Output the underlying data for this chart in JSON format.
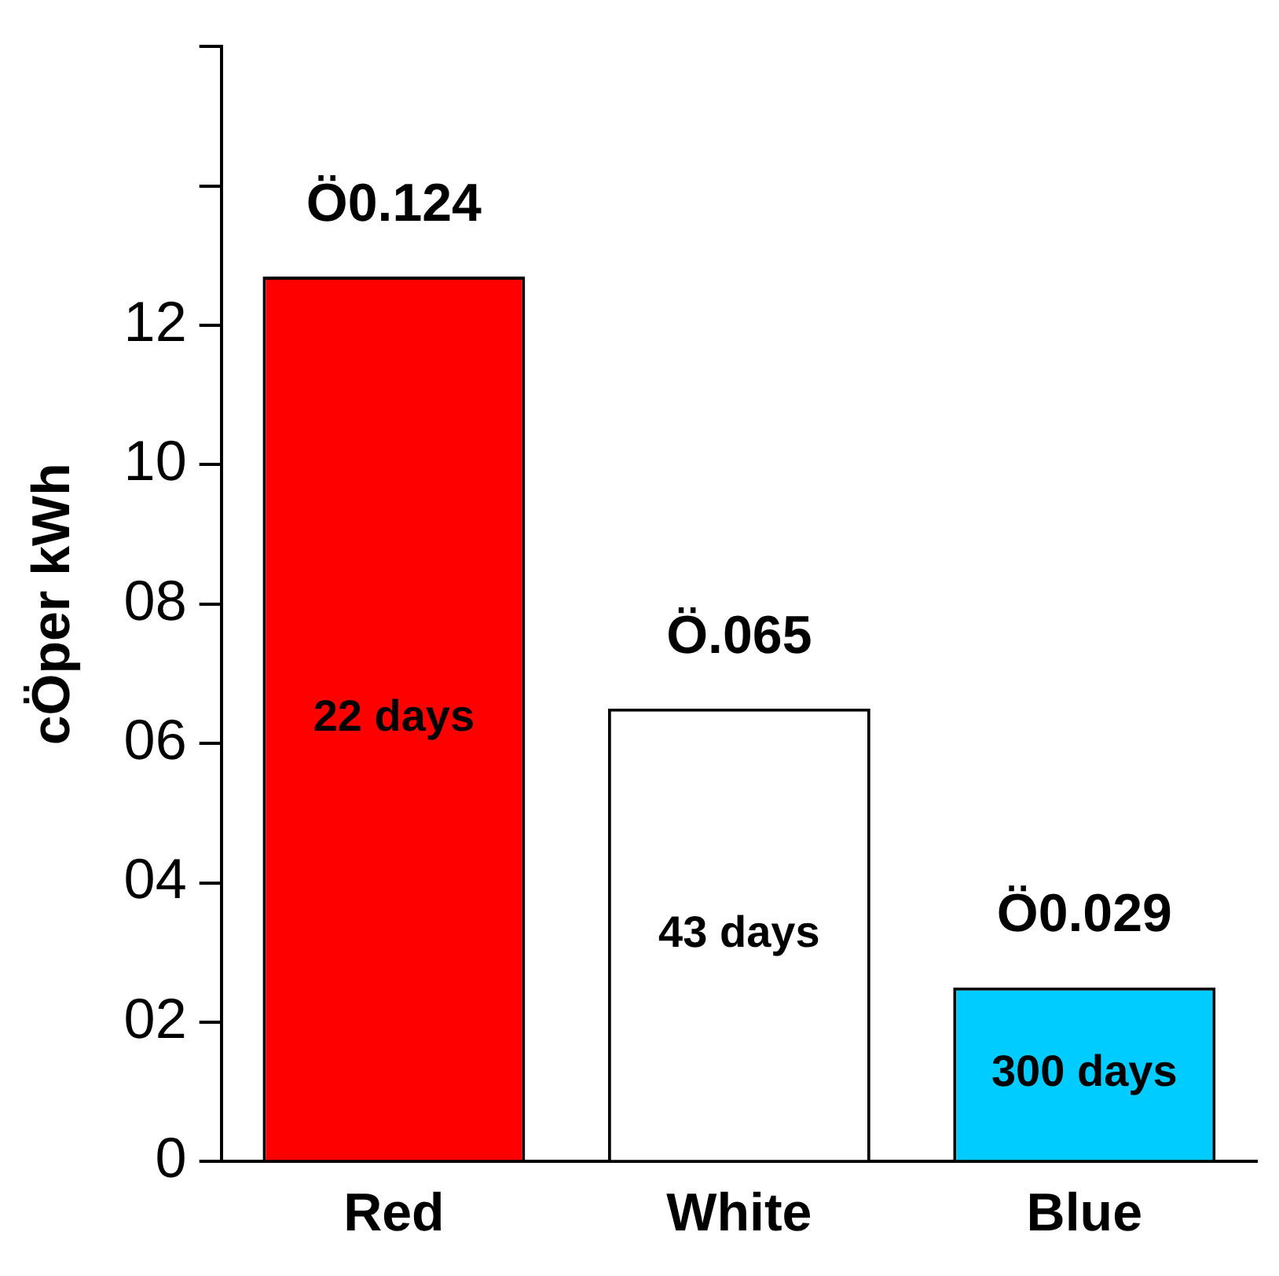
{
  "chart_data": {
    "type": "bar",
    "ylabel": "cÖper kWh",
    "categories": [
      "Red",
      "White",
      "Blue"
    ],
    "values": [
      12.7,
      6.5,
      2.5
    ],
    "colors": [
      "#ff0000",
      "#ffffff",
      "#00ccff"
    ],
    "value_labels": [
      "Ö0.124",
      "Ö.065",
      "Ö0.029"
    ],
    "annotations": [
      "22 days",
      "43 days",
      "300 days"
    ],
    "ylim": [
      0,
      16
    ],
    "yticks": [
      0,
      {
        "value": 2,
        "label": "02"
      },
      {
        "value": 4,
        "label": "04"
      },
      {
        "value": 6,
        "label": "06"
      },
      {
        "value": 8,
        "label": "08"
      },
      10,
      12,
      {
        "value": 14,
        "label": null
      },
      {
        "value": 16,
        "label": null
      }
    ],
    "grid": false,
    "legend": false
  }
}
